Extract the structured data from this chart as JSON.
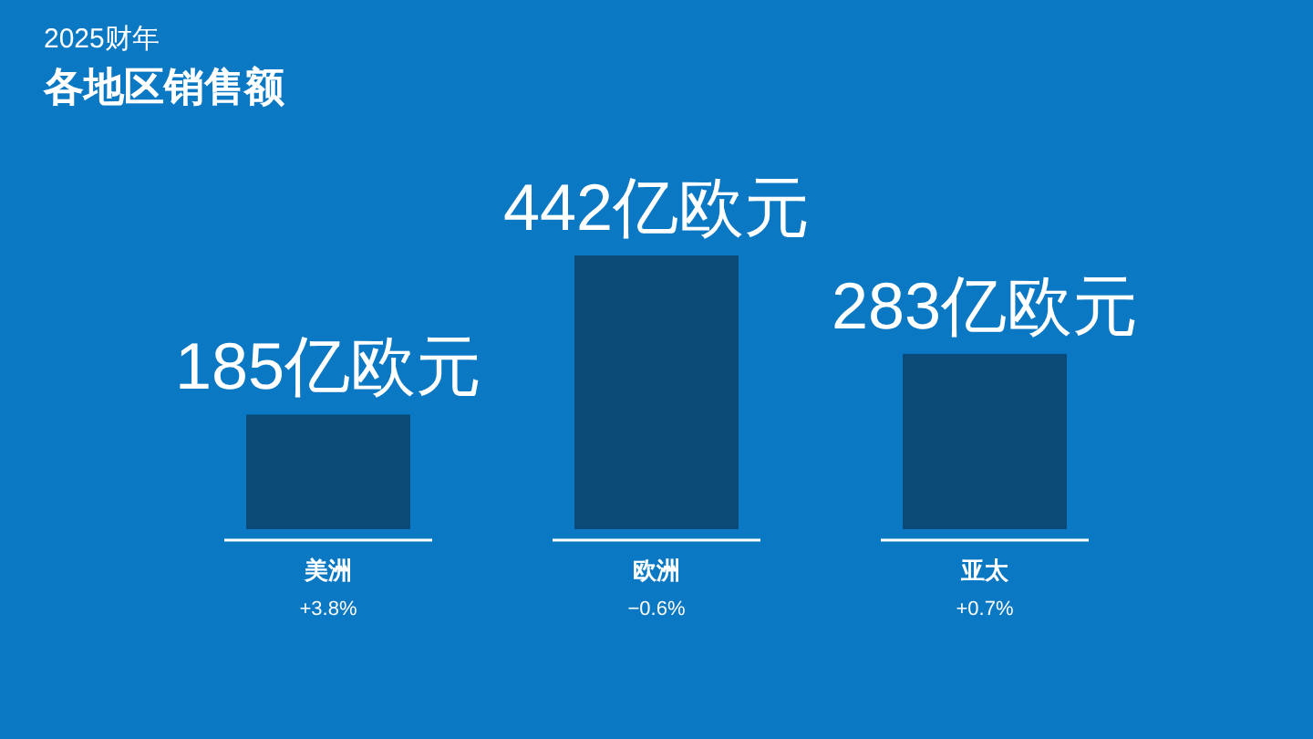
{
  "chart_data": {
    "type": "bar",
    "title": "各地区销售额",
    "subtitle": "2025财年",
    "categories": [
      "美洲",
      "欧洲",
      "亚太"
    ],
    "values": [
      185,
      442,
      283
    ],
    "value_labels": [
      "185亿欧元",
      "442亿欧元",
      "283亿欧元"
    ],
    "color": "#0b4a76",
    "annotations": [
      "+3.8%",
      "−0.6%",
      "+0.7%"
    ]
  }
}
